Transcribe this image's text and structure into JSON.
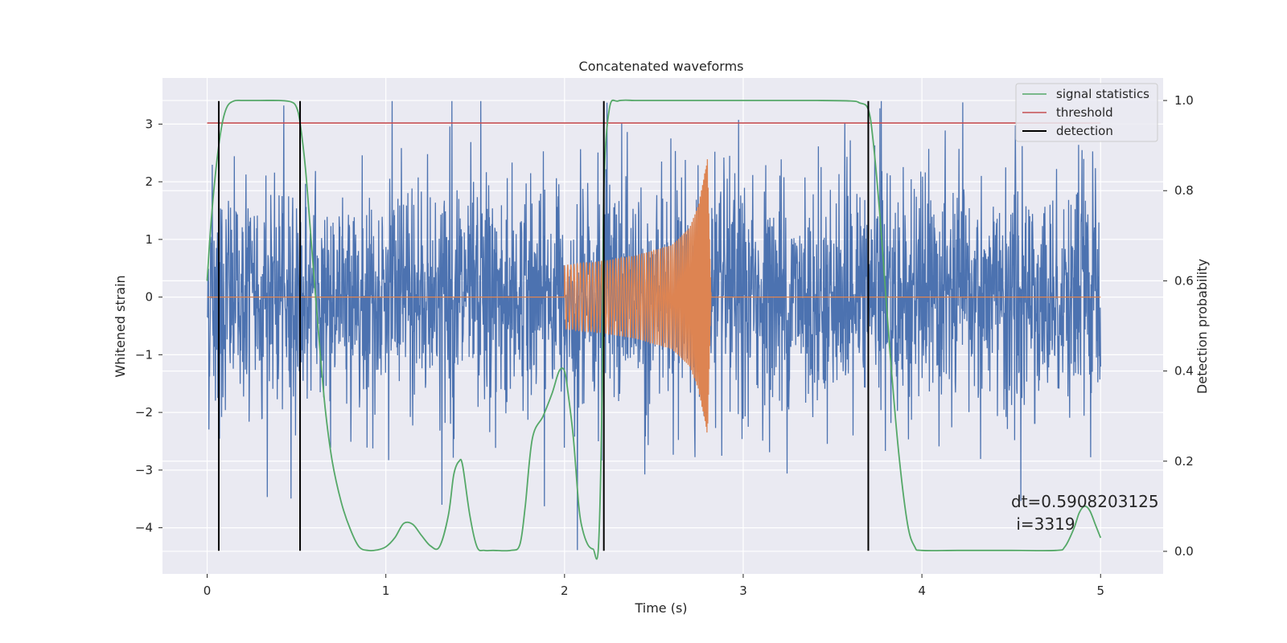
{
  "chart_data": {
    "type": "line",
    "title": "Concatenated waveforms",
    "xlabel": "Time (s)",
    "ylabel": "Whitened strain",
    "y2label": "Detection probability",
    "xlim": [
      -0.25,
      5.35
    ],
    "ylim": [
      -4.8,
      3.8
    ],
    "y2lim": [
      -0.05,
      1.05
    ],
    "xticks": [
      0,
      1,
      2,
      3,
      4,
      5
    ],
    "yticks": [
      -4,
      -3,
      -2,
      -1,
      0,
      1,
      2,
      3
    ],
    "y2ticks": [
      0.0,
      0.2,
      0.4,
      0.6,
      0.8,
      1.0
    ],
    "xtick_labels": [
      "0",
      "1",
      "2",
      "3",
      "4",
      "5"
    ],
    "ytick_labels": [
      "−4",
      "−3",
      "−2",
      "−1",
      "0",
      "1",
      "2",
      "3"
    ],
    "y2tick_labels": [
      "0.0",
      "0.2",
      "0.4",
      "0.6",
      "0.8",
      "1.0"
    ],
    "grid": true,
    "legend_position": "top-right",
    "legend": [
      {
        "label": "signal statistics",
        "color": "#55a868"
      },
      {
        "label": "threshold",
        "color": "#c44e52"
      },
      {
        "label": "detection",
        "color": "#000000"
      }
    ],
    "strain_noise": {
      "color": "#4c72b0",
      "x_range": [
        0,
        5
      ],
      "typical_amplitude": 1.0,
      "y_extremes": [
        -4.4,
        3.4
      ]
    },
    "waveform": {
      "color": "#dd8452",
      "x_range": [
        2.0,
        2.82
      ],
      "envelope": {
        "x": [
          2.0,
          2.2,
          2.4,
          2.6,
          2.7,
          2.75,
          2.8,
          2.82
        ],
        "y": [
          0.55,
          0.62,
          0.72,
          0.9,
          1.2,
          1.6,
          2.4,
          0.0
        ]
      },
      "flat_after": [
        2.82,
        3.0
      ]
    },
    "signal_statistics": {
      "color": "#55a868",
      "axis": "right",
      "x": [
        0,
        0.02,
        0.05,
        0.08,
        0.11,
        0.15,
        0.2,
        0.3,
        0.4,
        0.47,
        0.5,
        0.52,
        0.55,
        0.58,
        0.62,
        0.66,
        0.7,
        0.75,
        0.8,
        0.85,
        0.9,
        0.95,
        1.0,
        1.05,
        1.1,
        1.15,
        1.2,
        1.25,
        1.3,
        1.35,
        1.38,
        1.41,
        1.43,
        1.47,
        1.51,
        1.55,
        1.6,
        1.7,
        1.75,
        1.78,
        1.82,
        1.88,
        1.93,
        1.97,
        2.0,
        2.02,
        2.05,
        2.08,
        2.1,
        2.13,
        2.16,
        2.19,
        2.21,
        2.22,
        2.25,
        2.3,
        2.4,
        2.5,
        2.6,
        2.8,
        3.0,
        3.2,
        3.4,
        3.6,
        3.65,
        3.7,
        3.73,
        3.77,
        3.82,
        3.87,
        3.92,
        3.96,
        4.0,
        4.2,
        4.5,
        4.75,
        4.8,
        4.85,
        4.88,
        4.91,
        4.94,
        4.97,
        5.0
      ],
      "y": [
        0.6,
        0.72,
        0.85,
        0.94,
        0.985,
        0.999,
        1.0,
        1.0,
        1.0,
        0.997,
        0.985,
        0.95,
        0.85,
        0.7,
        0.5,
        0.32,
        0.2,
        0.11,
        0.05,
        0.01,
        0.002,
        0.003,
        0.01,
        0.03,
        0.062,
        0.06,
        0.035,
        0.012,
        0.01,
        0.08,
        0.17,
        0.2,
        0.19,
        0.08,
        0.01,
        0.002,
        0.002,
        0.002,
        0.015,
        0.1,
        0.25,
        0.3,
        0.35,
        0.4,
        0.4,
        0.35,
        0.25,
        0.1,
        0.05,
        0.015,
        0.005,
        0.01,
        0.35,
        0.8,
        0.98,
        0.999,
        1.0,
        1.0,
        1.0,
        1.0,
        1.0,
        1.0,
        1.0,
        0.999,
        0.995,
        0.98,
        0.9,
        0.72,
        0.45,
        0.22,
        0.06,
        0.01,
        0.002,
        0.002,
        0.002,
        0.002,
        0.01,
        0.05,
        0.085,
        0.1,
        0.09,
        0.06,
        0.03
      ]
    },
    "threshold": {
      "color": "#c44e52",
      "axis": "right",
      "x": [
        0,
        5
      ],
      "y": 0.95
    },
    "detections": {
      "color": "#000000",
      "x": [
        0.065,
        0.52,
        2.22,
        3.7
      ],
      "ymin": -4.4,
      "ymax": 3.4
    },
    "annotation": [
      "dt=0.5908203125",
      " i=3319"
    ]
  }
}
